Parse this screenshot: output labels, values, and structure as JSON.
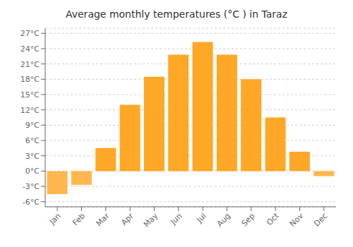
{
  "chart_data": {
    "type": "bar",
    "title": "Average monthly temperatures (°C ) in Taraz",
    "categories": [
      "Jan",
      "Feb",
      "Mar",
      "Apr",
      "May",
      "Jun",
      "Jul",
      "Aug",
      "Sep",
      "Oct",
      "Nov",
      "Dec"
    ],
    "values": [
      -4.5,
      -2.7,
      4.5,
      13.0,
      18.5,
      22.8,
      25.3,
      22.8,
      18.0,
      10.5,
      3.8,
      -1.0
    ],
    "colors": [
      "#FFB74D",
      "#FFB74D",
      "#FFA726",
      "#FFA726",
      "#FFA726",
      "#FFA726",
      "#FFA726",
      "#FFA726",
      "#FFA726",
      "#FFA726",
      "#FFA726",
      "#FFB74D"
    ],
    "ylim": [
      -7,
      28
    ],
    "yticks": [
      {
        "value": -6,
        "label": "-6°C"
      },
      {
        "value": -3,
        "label": "-3°C"
      },
      {
        "value": 0,
        "label": "0°C"
      },
      {
        "value": 3,
        "label": "3°C"
      },
      {
        "value": 6,
        "label": "6°C"
      },
      {
        "value": 9,
        "label": "9°C"
      },
      {
        "value": 12,
        "label": "12°C"
      },
      {
        "value": 15,
        "label": "15°C"
      },
      {
        "value": 18,
        "label": "18°C"
      },
      {
        "value": 21,
        "label": "21°C"
      },
      {
        "value": 24,
        "label": "24°C"
      },
      {
        "value": 27,
        "label": "27°C"
      }
    ],
    "grid": true
  }
}
